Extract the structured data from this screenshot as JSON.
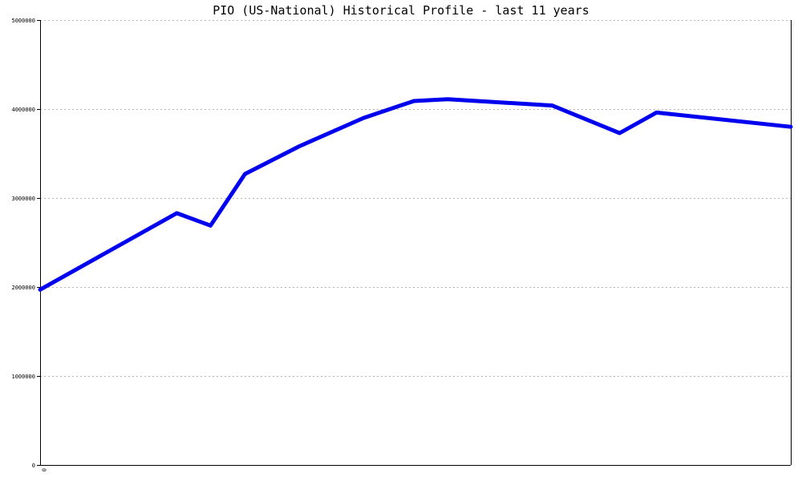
{
  "chart_data": {
    "type": "line",
    "title": "PIO (US-National) Historical Profile - last 11 years",
    "xlabel": "",
    "ylabel": "",
    "x_tick_labels": [
      "0"
    ],
    "y_tick_labels": [
      "0",
      "1000000",
      "2000000",
      "3000000",
      "4000000",
      "5000000"
    ],
    "y_ticks": [
      0,
      1000000,
      2000000,
      3000000,
      4000000,
      5000000
    ],
    "xlim": [
      0,
      1
    ],
    "ylim": [
      0,
      5000000
    ],
    "grid": true,
    "legend": "none",
    "series": [
      {
        "color": "#0000ee",
        "points": [
          [
            0.0,
            1970000
          ],
          [
            0.182,
            2830000
          ],
          [
            0.227,
            2690000
          ],
          [
            0.273,
            3270000
          ],
          [
            0.345,
            3580000
          ],
          [
            0.431,
            3900000
          ],
          [
            0.498,
            4090000
          ],
          [
            0.543,
            4110000
          ],
          [
            0.682,
            4040000
          ],
          [
            0.772,
            3730000
          ],
          [
            0.821,
            3960000
          ],
          [
            1.0,
            3800000
          ]
        ]
      }
    ]
  }
}
